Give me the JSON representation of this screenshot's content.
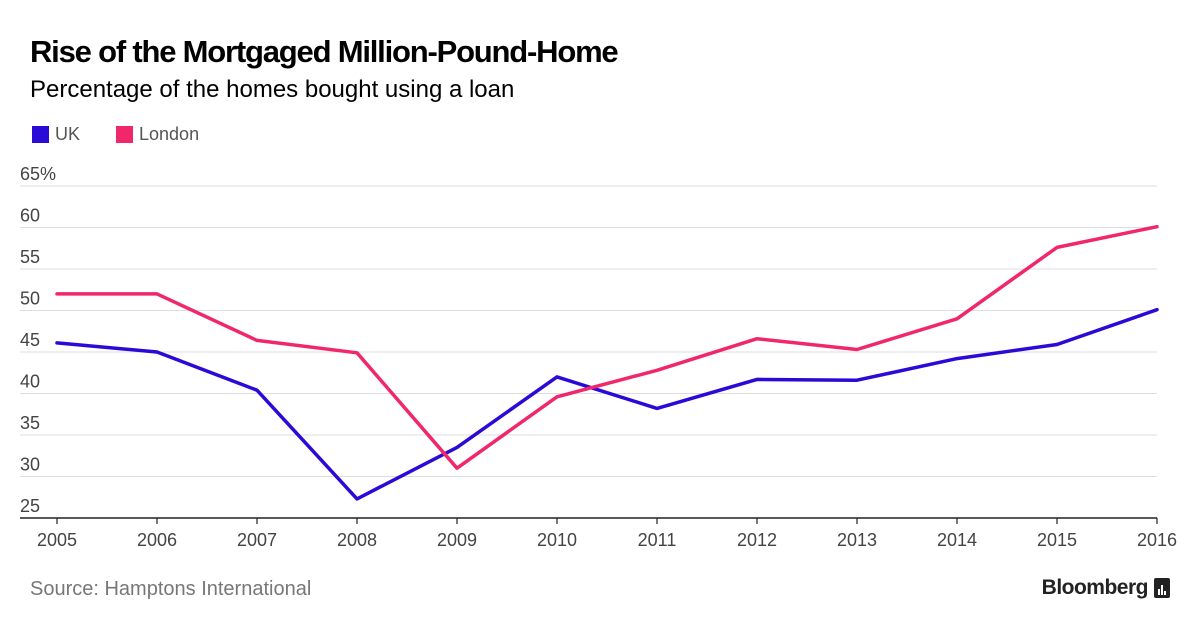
{
  "header": {
    "title": "Rise of the Mortgaged Million-Pound-Home",
    "subtitle": "Percentage of the homes bought using a loan"
  },
  "legend": [
    {
      "label": "UK",
      "color": "#2a0ad6"
    },
    {
      "label": "London",
      "color": "#f0286b"
    }
  ],
  "footer": {
    "source": "Source: Hamptons International",
    "brand": "Bloomberg"
  },
  "chart_data": {
    "type": "line",
    "title": "Rise of the Mortgaged Million-Pound-Home",
    "subtitle": "Percentage of the homes bought using a loan",
    "xlabel": "",
    "ylabel": "",
    "x": [
      "2005",
      "2006",
      "2007",
      "2008",
      "2009",
      "2010",
      "2011",
      "2012",
      "2013",
      "2014",
      "2015",
      "2016"
    ],
    "ylim": [
      25,
      65
    ],
    "yticks": [
      "25",
      "30",
      "35",
      "40",
      "45",
      "50",
      "55",
      "60",
      "65%"
    ],
    "grid": true,
    "legend_position": "top-left",
    "series": [
      {
        "name": "UK",
        "color": "#2a0ad6",
        "values": [
          46.1,
          45.0,
          40.4,
          27.3,
          33.5,
          42.0,
          38.2,
          41.7,
          41.6,
          44.2,
          45.9,
          50.1
        ]
      },
      {
        "name": "London",
        "color": "#f0286b",
        "values": [
          52.0,
          52.0,
          46.4,
          44.9,
          31.0,
          39.6,
          42.8,
          46.6,
          45.3,
          49.0,
          57.6,
          60.1
        ]
      }
    ]
  }
}
